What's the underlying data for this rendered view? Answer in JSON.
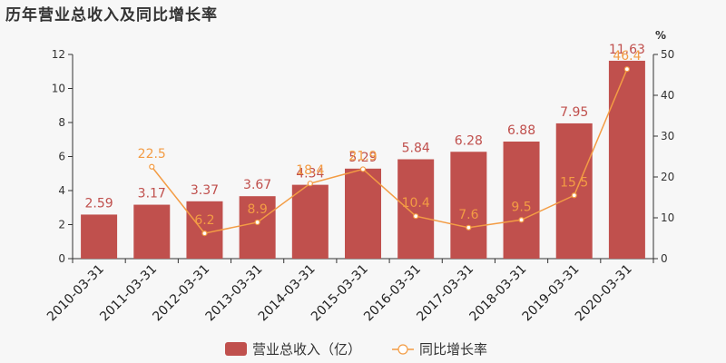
{
  "header": {
    "title": "历年营业总收入及同比增长率"
  },
  "chart_data": {
    "type": "bar",
    "title": "历年营业总收入及同比增长率",
    "categories": [
      "2010-03-31",
      "2011-03-31",
      "2012-03-31",
      "2013-03-31",
      "2014-03-31",
      "2015-03-31",
      "2016-03-31",
      "2017-03-31",
      "2018-03-31",
      "2019-03-31",
      "2020-03-31"
    ],
    "series": [
      {
        "name": "营业总收入（亿）",
        "type": "bar",
        "axis": "left",
        "color": "#c0504d",
        "values": [
          2.59,
          3.17,
          3.37,
          3.67,
          4.34,
          5.29,
          5.84,
          6.28,
          6.88,
          7.95,
          11.63
        ],
        "labels": [
          "2.59",
          "3.17",
          "3.37",
          "3.67",
          "4.34",
          "5.29",
          "5.84",
          "6.28",
          "6.88",
          "7.95",
          "11.63"
        ]
      },
      {
        "name": "同比增长率",
        "type": "line",
        "axis": "right",
        "color": "#f39c44",
        "values": [
          null,
          22.5,
          6.2,
          8.9,
          18.4,
          21.9,
          10.4,
          7.6,
          9.5,
          15.5,
          46.4
        ],
        "labels": [
          "",
          "22.5",
          "6.2",
          "8.9",
          "18.4",
          "21.9",
          "10.4",
          "7.6",
          "9.5",
          "15.5",
          "46.4"
        ]
      }
    ],
    "ylim_left": [
      0,
      12
    ],
    "yticks_left": [
      "0",
      "2",
      "4",
      "6",
      "8",
      "10",
      "12"
    ],
    "ylim_right": [
      0,
      50
    ],
    "yticks_right": [
      "0",
      "10",
      "20",
      "30",
      "40",
      "50"
    ],
    "ylabel_right": "%",
    "grid": false,
    "legend_position": "bottom"
  }
}
